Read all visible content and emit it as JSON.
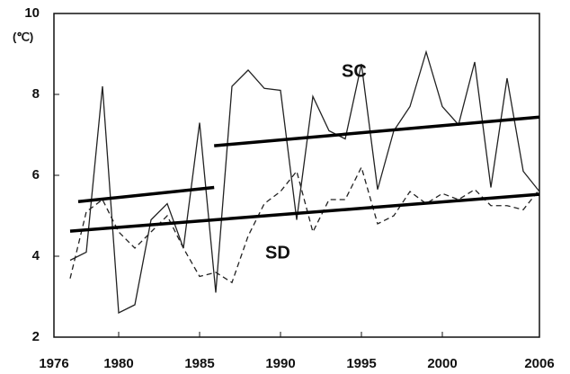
{
  "chart_data": {
    "type": "line",
    "y_label": "(℃)",
    "x": [
      1977,
      1978,
      1979,
      1980,
      1981,
      1982,
      1983,
      1984,
      1985,
      1986,
      1987,
      1988,
      1989,
      1990,
      1991,
      1992,
      1993,
      1994,
      1995,
      1996,
      1997,
      1998,
      1999,
      2000,
      2001,
      2002,
      2003,
      2004,
      2005,
      2006
    ],
    "series": [
      {
        "name": "SC",
        "color": "#222222",
        "dash": false,
        "values": [
          3.9,
          4.1,
          8.2,
          2.6,
          2.8,
          4.9,
          5.3,
          4.2,
          7.3,
          3.1,
          8.2,
          8.6,
          8.15,
          8.1,
          4.9,
          7.95,
          7.1,
          6.9,
          8.75,
          5.65,
          7.1,
          7.7,
          9.05,
          7.7,
          7.25,
          8.8,
          5.7,
          8.4,
          6.1,
          5.6
        ]
      },
      {
        "name": "SD",
        "color": "#222222",
        "dash": true,
        "values": [
          3.45,
          5.1,
          5.4,
          4.6,
          4.2,
          4.6,
          5.0,
          4.2,
          3.5,
          3.6,
          3.35,
          4.5,
          5.3,
          5.6,
          6.1,
          4.6,
          5.4,
          5.4,
          6.2,
          4.8,
          5.0,
          5.6,
          5.3,
          5.55,
          5.4,
          5.65,
          5.25,
          5.25,
          5.15,
          5.65
        ]
      }
    ],
    "trends": [
      {
        "x": [
          1977.5,
          1985.9
        ],
        "y": [
          5.35,
          5.7
        ]
      },
      {
        "x": [
          1985.9,
          2006
        ],
        "y": [
          6.73,
          7.44
        ]
      },
      {
        "x": [
          1977,
          2006
        ],
        "y": [
          4.62,
          5.53
        ]
      }
    ],
    "xlim": [
      1976,
      2006
    ],
    "xticks": [
      1976,
      1980,
      1985,
      1990,
      1995,
      2000,
      2006
    ],
    "ylim": [
      2,
      10
    ],
    "yticks": [
      2,
      4,
      6,
      8,
      10
    ]
  }
}
